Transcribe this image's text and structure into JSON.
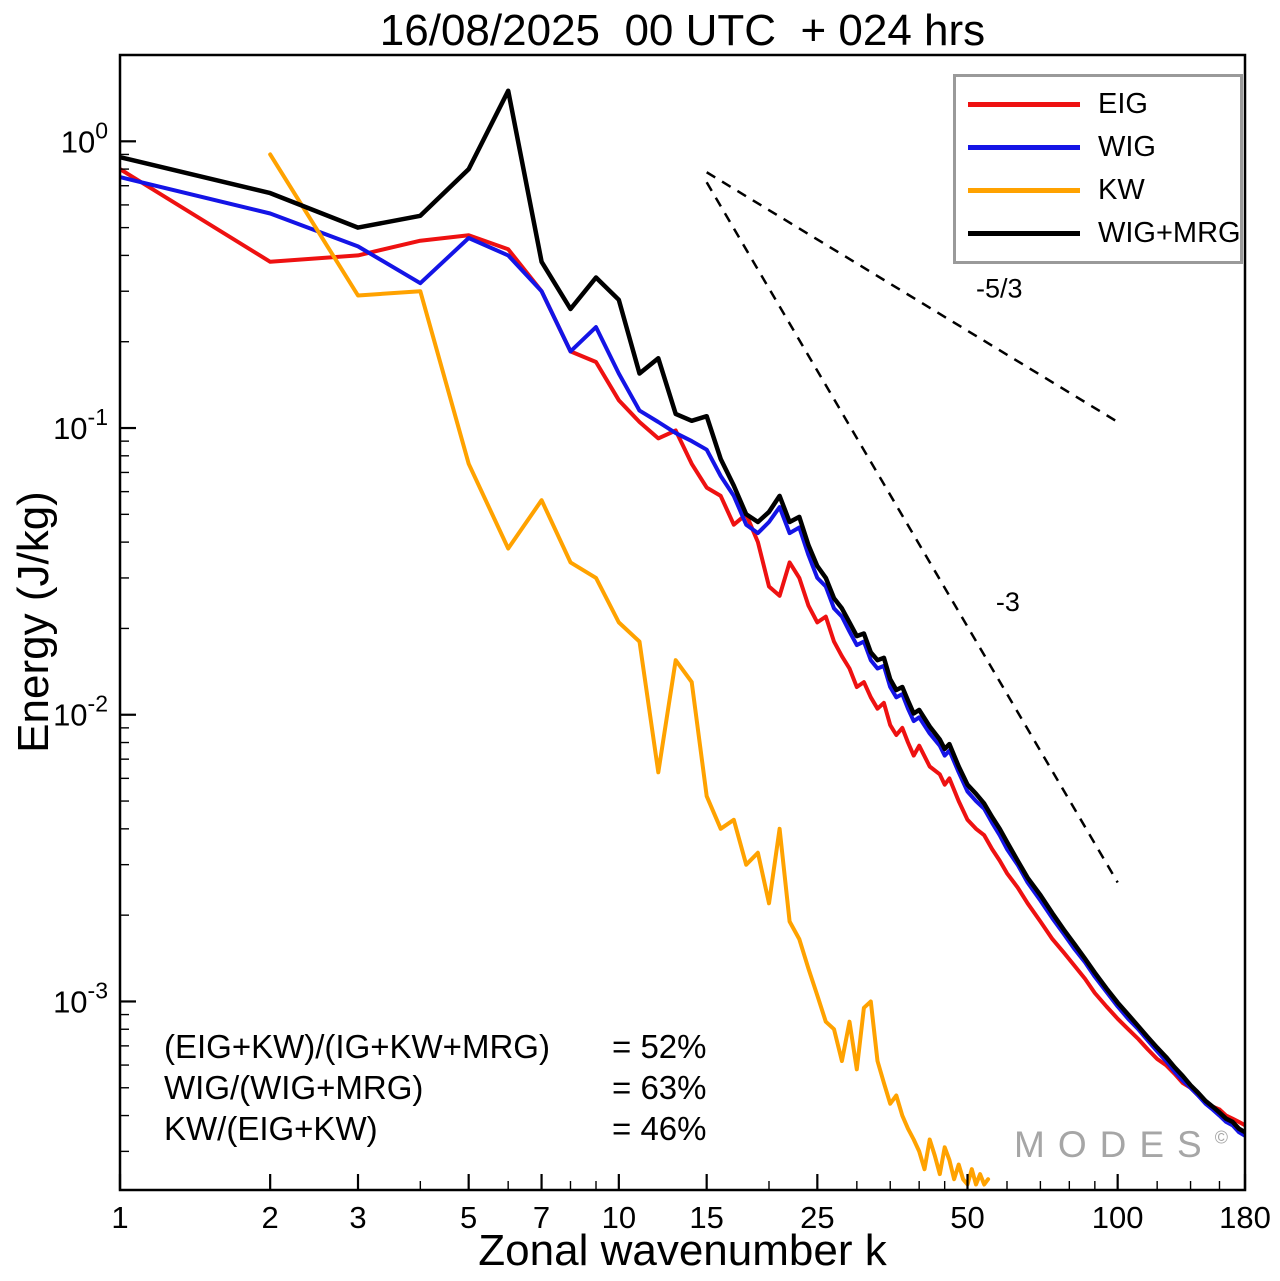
{
  "watermark": {
    "text": "MODES",
    "sup": "©"
  },
  "chart_data": {
    "type": "line",
    "title": "16/08/2025  00 UTC  + 024 hrs",
    "xlabel": "Zonal wavenumber k",
    "ylabel": "Energy (J/kg)",
    "xscale": "log",
    "yscale": "log",
    "xlim": [
      1,
      180
    ],
    "ylim": [
      0.00022,
      2.0
    ],
    "grid": false,
    "legend_position": "top-right",
    "x_major_ticks": [
      1,
      2,
      3,
      5,
      7,
      10,
      15,
      25,
      50,
      100,
      180
    ],
    "x_minor_ticks": [
      4,
      6,
      8,
      9,
      20,
      30,
      35,
      40,
      45,
      60,
      70,
      80,
      90,
      120,
      140,
      160
    ],
    "y_major_ticks": [
      {
        "value": 1,
        "exp": "0"
      },
      {
        "value": 0.1,
        "exp": "-1"
      },
      {
        "value": 0.01,
        "exp": "-2"
      },
      {
        "value": 0.001,
        "exp": "-3"
      }
    ],
    "series": [
      {
        "name": "EIG",
        "color": "#ee1111",
        "points": [
          [
            1,
            0.8
          ],
          [
            2,
            0.38
          ],
          [
            3,
            0.4
          ],
          [
            4,
            0.45
          ],
          [
            5,
            0.47
          ],
          [
            6,
            0.42
          ],
          [
            7,
            0.3
          ],
          [
            8,
            0.185
          ],
          [
            9,
            0.17
          ],
          [
            10,
            0.125
          ],
          [
            11,
            0.105
          ],
          [
            12,
            0.092
          ],
          [
            13,
            0.098
          ],
          [
            14,
            0.075
          ],
          [
            15,
            0.062
          ],
          [
            16,
            0.058
          ],
          [
            17,
            0.046
          ],
          [
            18,
            0.05
          ],
          [
            19,
            0.04
          ],
          [
            20,
            0.028
          ],
          [
            21,
            0.026
          ],
          [
            22,
            0.034
          ],
          [
            23,
            0.03
          ],
          [
            24,
            0.024
          ],
          [
            25,
            0.021
          ],
          [
            26,
            0.022
          ],
          [
            27,
            0.018
          ],
          [
            28,
            0.016
          ],
          [
            29,
            0.0145
          ],
          [
            30,
            0.0125
          ],
          [
            31,
            0.013
          ],
          [
            32,
            0.0115
          ],
          [
            33,
            0.0105
          ],
          [
            34,
            0.011
          ],
          [
            35,
            0.0092
          ],
          [
            36,
            0.0085
          ],
          [
            37,
            0.009
          ],
          [
            38,
            0.008
          ],
          [
            39,
            0.0072
          ],
          [
            40,
            0.0078
          ],
          [
            42,
            0.0066
          ],
          [
            44,
            0.0062
          ],
          [
            45,
            0.0057
          ],
          [
            46,
            0.006
          ],
          [
            48,
            0.005
          ],
          [
            50,
            0.0043
          ],
          [
            52,
            0.004
          ],
          [
            54,
            0.0038
          ],
          [
            56,
            0.0034
          ],
          [
            58,
            0.0031
          ],
          [
            60,
            0.0028
          ],
          [
            63,
            0.0025
          ],
          [
            66,
            0.0022
          ],
          [
            70,
            0.0019
          ],
          [
            74,
            0.00165
          ],
          [
            78,
            0.00148
          ],
          [
            82,
            0.00133
          ],
          [
            86,
            0.0012
          ],
          [
            90,
            0.00107
          ],
          [
            95,
            0.00096
          ],
          [
            100,
            0.00087
          ],
          [
            105,
            0.0008
          ],
          [
            110,
            0.00074
          ],
          [
            115,
            0.00068
          ],
          [
            120,
            0.00063
          ],
          [
            125,
            0.0006
          ],
          [
            130,
            0.00056
          ],
          [
            135,
            0.00052
          ],
          [
            140,
            0.0005
          ],
          [
            145,
            0.00047
          ],
          [
            150,
            0.00045
          ],
          [
            155,
            0.00043
          ],
          [
            160,
            0.00042
          ],
          [
            165,
            0.0004
          ],
          [
            170,
            0.00039
          ],
          [
            175,
            0.00038
          ],
          [
            180,
            0.00037
          ]
        ]
      },
      {
        "name": "WIG",
        "color": "#1414e6",
        "points": [
          [
            1,
            0.75
          ],
          [
            2,
            0.56
          ],
          [
            3,
            0.43
          ],
          [
            4,
            0.32
          ],
          [
            5,
            0.46
          ],
          [
            6,
            0.4
          ],
          [
            7,
            0.3
          ],
          [
            8,
            0.185
          ],
          [
            9,
            0.225
          ],
          [
            10,
            0.155
          ],
          [
            11,
            0.115
          ],
          [
            12,
            0.105
          ],
          [
            13,
            0.096
          ],
          [
            14,
            0.09
          ],
          [
            15,
            0.084
          ],
          [
            16,
            0.068
          ],
          [
            17,
            0.058
          ],
          [
            18,
            0.046
          ],
          [
            19,
            0.043
          ],
          [
            20,
            0.047
          ],
          [
            21,
            0.053
          ],
          [
            22,
            0.043
          ],
          [
            23,
            0.045
          ],
          [
            24,
            0.036
          ],
          [
            25,
            0.03
          ],
          [
            26,
            0.028
          ],
          [
            27,
            0.0235
          ],
          [
            28,
            0.022
          ],
          [
            29,
            0.0195
          ],
          [
            30,
            0.0175
          ],
          [
            31,
            0.018
          ],
          [
            32,
            0.0155
          ],
          [
            33,
            0.0145
          ],
          [
            34,
            0.0148
          ],
          [
            35,
            0.0125
          ],
          [
            36,
            0.0115
          ],
          [
            37,
            0.0118
          ],
          [
            38,
            0.0105
          ],
          [
            39,
            0.0095
          ],
          [
            40,
            0.0098
          ],
          [
            42,
            0.0086
          ],
          [
            44,
            0.0078
          ],
          [
            45,
            0.0072
          ],
          [
            46,
            0.0075
          ],
          [
            48,
            0.0063
          ],
          [
            50,
            0.0054
          ],
          [
            52,
            0.005
          ],
          [
            54,
            0.0047
          ],
          [
            56,
            0.0042
          ],
          [
            58,
            0.0038
          ],
          [
            60,
            0.0034
          ],
          [
            63,
            0.003
          ],
          [
            66,
            0.0026
          ],
          [
            70,
            0.00225
          ],
          [
            74,
            0.00195
          ],
          [
            78,
            0.00172
          ],
          [
            82,
            0.00152
          ],
          [
            86,
            0.00137
          ],
          [
            90,
            0.00122
          ],
          [
            95,
            0.00108
          ],
          [
            100,
            0.00096
          ],
          [
            105,
            0.00087
          ],
          [
            110,
            0.0008
          ],
          [
            115,
            0.00073
          ],
          [
            120,
            0.00067
          ],
          [
            125,
            0.00062
          ],
          [
            130,
            0.00057
          ],
          [
            135,
            0.00053
          ],
          [
            140,
            0.0005
          ],
          [
            145,
            0.00047
          ],
          [
            150,
            0.00044
          ],
          [
            155,
            0.00042
          ],
          [
            160,
            0.0004
          ],
          [
            165,
            0.00038
          ],
          [
            170,
            0.00037
          ],
          [
            175,
            0.00035
          ],
          [
            180,
            0.00034
          ]
        ]
      },
      {
        "name": "KW",
        "color": "#ffa200",
        "points": [
          [
            2,
            0.9
          ],
          [
            3,
            0.29
          ],
          [
            4,
            0.3
          ],
          [
            5,
            0.075
          ],
          [
            6,
            0.038
          ],
          [
            7,
            0.056
          ],
          [
            8,
            0.034
          ],
          [
            9,
            0.03
          ],
          [
            10,
            0.021
          ],
          [
            11,
            0.018
          ],
          [
            12,
            0.0063
          ],
          [
            13,
            0.0155
          ],
          [
            14,
            0.013
          ],
          [
            15,
            0.0052
          ],
          [
            16,
            0.004
          ],
          [
            17,
            0.0043
          ],
          [
            18,
            0.003
          ],
          [
            19,
            0.0033
          ],
          [
            20,
            0.0022
          ],
          [
            21,
            0.004
          ],
          [
            22,
            0.0019
          ],
          [
            23,
            0.00165
          ],
          [
            24,
            0.0013
          ],
          [
            25,
            0.00105
          ],
          [
            26,
            0.00085
          ],
          [
            27,
            0.0008
          ],
          [
            28,
            0.00062
          ],
          [
            29,
            0.00085
          ],
          [
            30,
            0.00058
          ],
          [
            31,
            0.00095
          ],
          [
            32,
            0.001
          ],
          [
            33,
            0.00062
          ],
          [
            34,
            0.00052
          ],
          [
            35,
            0.00044
          ],
          [
            36,
            0.00047
          ],
          [
            37,
            0.0004
          ],
          [
            38,
            0.00036
          ],
          [
            39,
            0.00033
          ],
          [
            40,
            0.0003
          ],
          [
            41,
            0.00026
          ],
          [
            42,
            0.00033
          ],
          [
            43,
            0.00029
          ],
          [
            44,
            0.00025
          ],
          [
            45,
            0.00031
          ],
          [
            46,
            0.00028
          ],
          [
            47,
            0.00024
          ],
          [
            48,
            0.00027
          ],
          [
            49,
            0.00024
          ],
          [
            50,
            0.00023
          ],
          [
            51,
            0.00026
          ],
          [
            52,
            0.00023
          ],
          [
            53,
            0.00025
          ],
          [
            54,
            0.00023
          ],
          [
            55,
            0.00024
          ]
        ]
      },
      {
        "name": "WIG+MRG",
        "color": "#000000",
        "points": [
          [
            1,
            0.88
          ],
          [
            2,
            0.66
          ],
          [
            3,
            0.5
          ],
          [
            4,
            0.55
          ],
          [
            5,
            0.8
          ],
          [
            6,
            1.5
          ],
          [
            7,
            0.38
          ],
          [
            8,
            0.26
          ],
          [
            9,
            0.335
          ],
          [
            10,
            0.28
          ],
          [
            11,
            0.155
          ],
          [
            12,
            0.175
          ],
          [
            13,
            0.112
          ],
          [
            14,
            0.106
          ],
          [
            15,
            0.11
          ],
          [
            16,
            0.078
          ],
          [
            17,
            0.063
          ],
          [
            18,
            0.05
          ],
          [
            19,
            0.047
          ],
          [
            20,
            0.051
          ],
          [
            21,
            0.058
          ],
          [
            22,
            0.047
          ],
          [
            23,
            0.049
          ],
          [
            24,
            0.039
          ],
          [
            25,
            0.033
          ],
          [
            26,
            0.03
          ],
          [
            27,
            0.0255
          ],
          [
            28,
            0.0235
          ],
          [
            29,
            0.021
          ],
          [
            30,
            0.0188
          ],
          [
            31,
            0.0192
          ],
          [
            32,
            0.0165
          ],
          [
            33,
            0.0155
          ],
          [
            34,
            0.0158
          ],
          [
            35,
            0.0133
          ],
          [
            36,
            0.0122
          ],
          [
            37,
            0.0125
          ],
          [
            38,
            0.0112
          ],
          [
            39,
            0.0101
          ],
          [
            40,
            0.0104
          ],
          [
            42,
            0.0091
          ],
          [
            44,
            0.0082
          ],
          [
            45,
            0.0076
          ],
          [
            46,
            0.0079
          ],
          [
            48,
            0.0066
          ],
          [
            50,
            0.0057
          ],
          [
            52,
            0.0053
          ],
          [
            54,
            0.0049
          ],
          [
            56,
            0.0044
          ],
          [
            58,
            0.004
          ],
          [
            60,
            0.0036
          ],
          [
            63,
            0.0031
          ],
          [
            66,
            0.0027
          ],
          [
            70,
            0.00235
          ],
          [
            74,
            0.00203
          ],
          [
            78,
            0.00178
          ],
          [
            82,
            0.00158
          ],
          [
            86,
            0.00141
          ],
          [
            90,
            0.00126
          ],
          [
            95,
            0.00111
          ],
          [
            100,
            0.00099
          ],
          [
            105,
            0.0009
          ],
          [
            110,
            0.00082
          ],
          [
            115,
            0.00075
          ],
          [
            120,
            0.00069
          ],
          [
            125,
            0.00064
          ],
          [
            130,
            0.00059
          ],
          [
            135,
            0.00055
          ],
          [
            140,
            0.00051
          ],
          [
            145,
            0.00048
          ],
          [
            150,
            0.00045
          ],
          [
            155,
            0.00043
          ],
          [
            160,
            0.00041
          ],
          [
            165,
            0.00039
          ],
          [
            170,
            0.00038
          ],
          [
            175,
            0.00036
          ],
          [
            180,
            0.00035
          ]
        ]
      }
    ],
    "reference_lines": [
      {
        "label": "-5/3",
        "from": [
          15,
          0.78
        ],
        "to": [
          100,
          0.105
        ],
        "label_at": [
          52,
          0.285
        ]
      },
      {
        "label": "-3",
        "from": [
          15,
          0.72
        ],
        "to": [
          100,
          0.0026
        ],
        "label_at": [
          57,
          0.023
        ]
      }
    ],
    "stats": [
      {
        "label": "(EIG+KW)/(IG+KW+MRG)",
        "value": "= 52%"
      },
      {
        "label": "WIG/(WIG+MRG)",
        "value": "= 63%"
      },
      {
        "label": "KW/(EIG+KW)",
        "value": "= 46%"
      }
    ]
  }
}
